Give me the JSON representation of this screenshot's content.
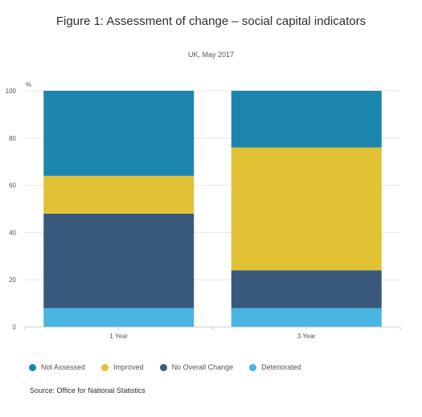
{
  "chart_data": {
    "type": "bar",
    "stacked": true,
    "title": "Figure 1: Assessment of change – social capital indicators",
    "subtitle": "UK, May 2017",
    "ylabel": "%",
    "ylim": [
      0,
      100
    ],
    "yticks": [
      "0",
      "20",
      "40",
      "60",
      "80",
      "100"
    ],
    "categories": [
      "1 Year",
      "3 Year"
    ],
    "series": [
      {
        "name": "Deteriorated",
        "color": "#4ab5e0",
        "values": [
          8,
          8
        ]
      },
      {
        "name": "No Overall Change",
        "color": "#3a5a7c",
        "values": [
          40,
          16
        ]
      },
      {
        "name": "Improved",
        "color": "#e2c235",
        "values": [
          16,
          52
        ]
      },
      {
        "name": "Not Assessed",
        "color": "#1c85ad",
        "values": [
          36,
          24
        ]
      }
    ],
    "legend": {
      "placement": "bottom",
      "order": [
        "Not Assessed",
        "Improved",
        "No Overall Change",
        "Deteriorated"
      ]
    },
    "grid": true,
    "source": "Source: Office for National Statistics"
  }
}
